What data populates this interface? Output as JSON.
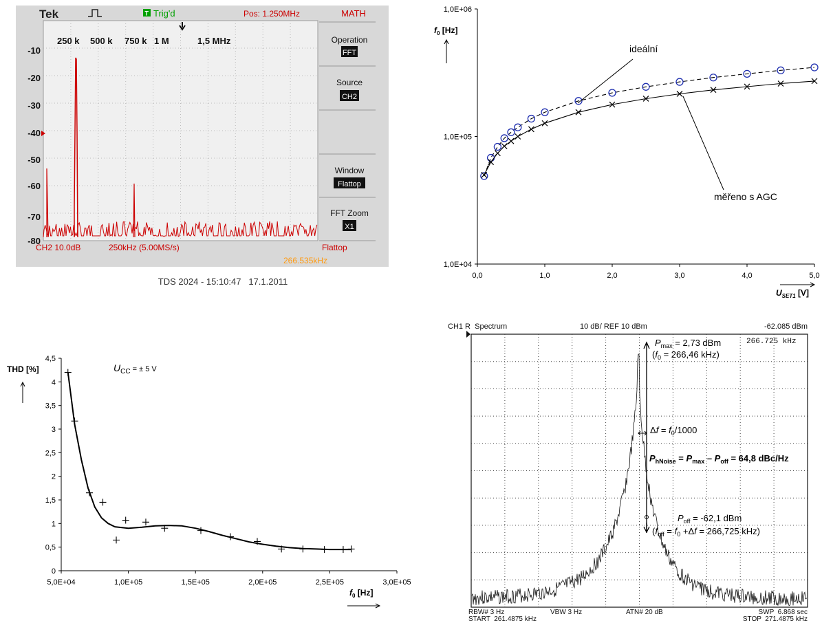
{
  "scope": {
    "brand": "Tek",
    "trig": "Trig'd",
    "trig_badge": "T",
    "pos": "Pos: 1.250MHz",
    "menu_title": "MATH",
    "freq_labels": [
      "250 k",
      "500 k",
      "750 k",
      "1 M",
      "1,5 MHz"
    ],
    "y_labels": [
      "-10",
      "-20",
      "-30",
      "-40",
      "-50",
      "-60",
      "-70",
      "-80"
    ],
    "ch_info": "CH2 10.0dB",
    "span_info": "250kHz (5.00MS/s)",
    "window_status": "Flattop",
    "cursor_freq": "266.535kHz",
    "caption": "TDS 2024 - 15:10:47   17.1.2011",
    "menu": [
      {
        "label": "Operation",
        "value": "FFT"
      },
      {
        "label": "Source",
        "value": "CH2"
      },
      {
        "label": "Window",
        "value": "Flattop"
      },
      {
        "label": "FFT Zoom",
        "value": "X1"
      }
    ],
    "colors": {
      "trace": "#cc0000",
      "trig": "#00a000",
      "pos": "#cc0000",
      "cursor": "#ffa020"
    }
  },
  "chart_data": [
    {
      "type": "line",
      "ylabel": "f0 [Hz]",
      "xlabel": "USET1 [V]",
      "yscale": "log",
      "ylim": [
        10000,
        1000000
      ],
      "xlim": [
        0,
        5
      ],
      "x_ticks": [
        "0,0",
        "1,0",
        "2,0",
        "3,0",
        "4,0",
        "5,0"
      ],
      "y_ticks": [
        "1,0E+04",
        "1,0E+05",
        "1,0E+06"
      ],
      "series": [
        {
          "name": "ideální",
          "marker": "circle",
          "dash": true,
          "x": [
            0.1,
            0.2,
            0.3,
            0.4,
            0.5,
            0.6,
            0.8,
            1.0,
            1.5,
            2.0,
            2.5,
            3.0,
            3.5,
            4.0,
            4.5,
            5.0
          ],
          "y": [
            49000,
            68000,
            83000,
            97000,
            108000,
            118000,
            138000,
            155000,
            190000,
            220000,
            245000,
            268000,
            290000,
            310000,
            330000,
            348000
          ]
        },
        {
          "name": "měřeno s AGC",
          "marker": "cross",
          "dash": false,
          "x": [
            0.1,
            0.2,
            0.3,
            0.4,
            0.5,
            0.6,
            0.8,
            1.0,
            1.5,
            2.0,
            2.5,
            3.0,
            3.5,
            4.0,
            4.5,
            5.0
          ],
          "y": [
            50000,
            63000,
            74000,
            84000,
            92000,
            100000,
            114000,
            127000,
            155000,
            178000,
            198000,
            216000,
            232000,
            246000,
            260000,
            272000
          ]
        }
      ]
    },
    {
      "type": "scatter",
      "ylabel": "THD [%]",
      "xlabel": "f0 [Hz]",
      "annotation": "UCC = ± 5 V",
      "xlim": [
        50000,
        300000
      ],
      "ylim": [
        0,
        4.5
      ],
      "x_ticks": [
        "5,0E+04",
        "1,0E+05",
        "1,5E+05",
        "2,0E+05",
        "2,5E+05",
        "3,0E+05"
      ],
      "y_ticks": [
        "0",
        "0,5",
        "1",
        "1,5",
        "2",
        "2,5",
        "3",
        "3,5",
        "4",
        "4,5"
      ],
      "x": [
        55000,
        60000,
        71000,
        81000,
        91000,
        98000,
        113000,
        127000,
        154000,
        176000,
        196000,
        214000,
        230000,
        246000,
        260000,
        266000
      ],
      "y": [
        4.2,
        3.17,
        1.65,
        1.45,
        0.65,
        1.07,
        1.03,
        0.9,
        0.85,
        0.72,
        0.62,
        0.46,
        0.46,
        0.45,
        0.45,
        0.46
      ],
      "trend": {
        "x": [
          55000,
          60000,
          65000,
          70000,
          75000,
          80000,
          85000,
          90000,
          100000,
          110000,
          120000,
          130000,
          140000,
          150000,
          160000,
          170000,
          180000,
          190000,
          200000,
          210000,
          220000,
          230000,
          240000,
          250000,
          260000,
          266000
        ],
        "y": [
          4.2,
          3.1,
          2.35,
          1.75,
          1.35,
          1.12,
          1.0,
          0.93,
          0.9,
          0.92,
          0.95,
          0.96,
          0.95,
          0.9,
          0.83,
          0.75,
          0.68,
          0.61,
          0.56,
          0.52,
          0.49,
          0.47,
          0.46,
          0.45,
          0.45,
          0.45
        ]
      }
    }
  ],
  "spectrum": {
    "header": {
      "left": "CH1 R  Spectrum",
      "mid": "10 dB/ REF 10 dBm",
      "right": "-62.085 dBm"
    },
    "marker_freq": "266.725 kHz",
    "pmax": "Pmax = 2,73 dBm",
    "f0": "(f0 = 266,46 kHz)",
    "df": "Δf = f0/1000",
    "phnoise": "PhNoise = Pmax – Poff = 64,8 dBc/Hz",
    "poff": "Poff = -62,1 dBm",
    "foff": "(foff = f0 +Δf = 266,725 kHz)",
    "footer": {
      "rbw": "RBW# 3 Hz",
      "vbw": "VBW 3 Hz",
      "atn": "ATN# 20 dB",
      "swp": "SWP  6.868 sec",
      "start": "START  261.4875 kHz",
      "stop": "STOP  271.4875 kHz"
    }
  }
}
